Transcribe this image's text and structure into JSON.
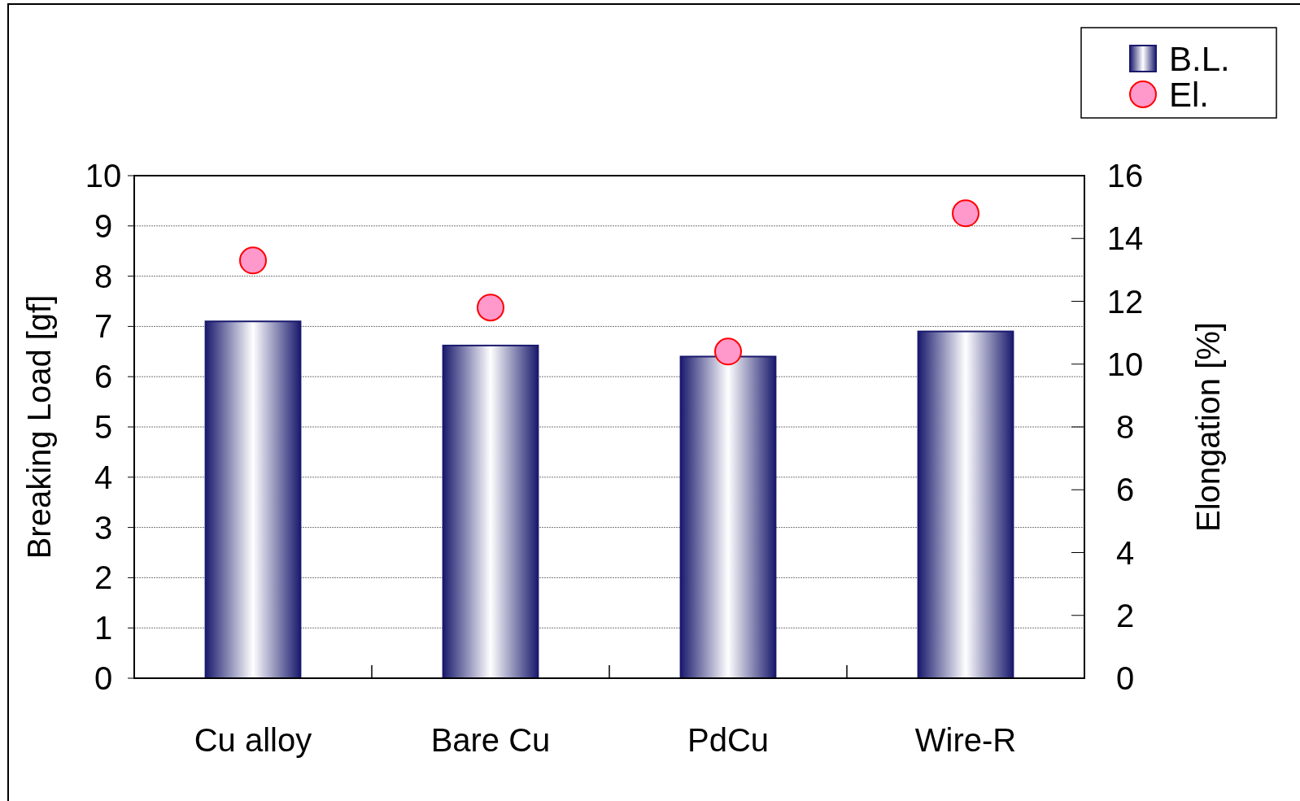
{
  "chart_data": {
    "type": "bar",
    "categories": [
      "Cu alloy",
      "Bare Cu",
      "PdCu",
      "Wire-R"
    ],
    "series": [
      {
        "name": "B.L.",
        "color": "#1a1a6e",
        "values": [
          7.1,
          6.62,
          6.4,
          6.9
        ]
      },
      {
        "name": "El.",
        "type": "scatter",
        "axis": "y2",
        "color": "#ff99cc",
        "values": [
          13.3,
          11.8,
          10.4,
          14.8
        ]
      }
    ],
    "ylabel": "Breaking Load [gf]",
    "y2label": "Elongation [%]",
    "ylim": [
      0,
      10
    ],
    "yticks": [
      0,
      1,
      2,
      3,
      4,
      5,
      6,
      7,
      8,
      9,
      10
    ],
    "y2lim": [
      0,
      16
    ],
    "y2ticks": [
      0,
      2,
      4,
      6,
      8,
      10,
      12,
      14,
      16
    ],
    "grid": "y",
    "legend": "top right",
    "marker": "circle"
  }
}
